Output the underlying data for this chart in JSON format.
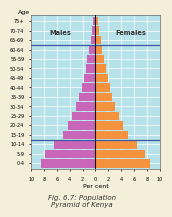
{
  "age_groups": [
    "0-4",
    "5-9",
    "10-14",
    "15-19",
    "20-24",
    "25-29",
    "30-34",
    "35-39",
    "40-44",
    "45-49",
    "50-54",
    "55-59",
    "60-64",
    "65-69",
    "70-74",
    "75+"
  ],
  "males": [
    8.5,
    7.8,
    6.5,
    5.0,
    4.2,
    3.6,
    3.0,
    2.5,
    2.1,
    1.8,
    1.5,
    1.3,
    1.0,
    0.7,
    0.5,
    0.4
  ],
  "females": [
    8.5,
    7.7,
    6.4,
    5.0,
    4.3,
    3.7,
    3.1,
    2.6,
    2.2,
    1.9,
    1.6,
    1.3,
    1.0,
    0.8,
    0.5,
    0.4
  ],
  "male_color": "#c966b8",
  "female_color": "#f5923e",
  "bg_color": "#b8e2ea",
  "outer_bg": "#f5eed8",
  "title": "Fig. 6.7: Population\nPyramid of Kenya",
  "xlabel": "Per cent",
  "ylabel": "Age",
  "xlim": 10,
  "bar_height": 0.88
}
